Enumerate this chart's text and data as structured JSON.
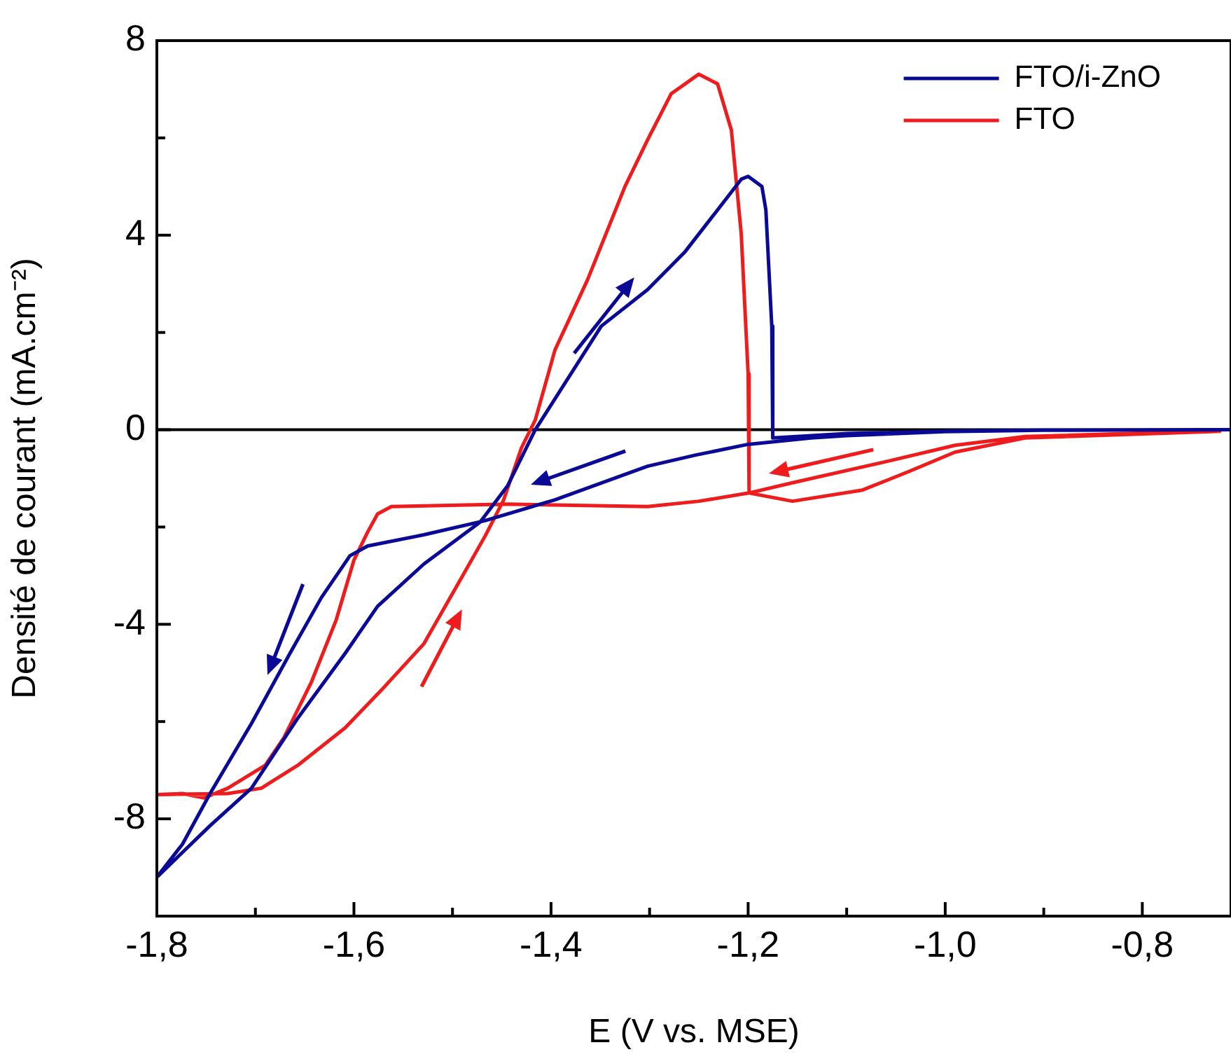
{
  "chart_data": {
    "type": "line",
    "xlabel": "E (V vs. MSE)",
    "ylabel": "Densité de courant (mA.cm⁻²)",
    "xlim": [
      -1.8,
      -0.71
    ],
    "ylim": [
      -10,
      8
    ],
    "xticks": [
      {
        "value": -1.8,
        "label": "-1,8"
      },
      {
        "value": -1.7,
        "label": null
      },
      {
        "value": -1.6,
        "label": "-1,6"
      },
      {
        "value": -1.5,
        "label": null
      },
      {
        "value": -1.4,
        "label": "-1,4"
      },
      {
        "value": -1.3,
        "label": null
      },
      {
        "value": -1.2,
        "label": "-1,2"
      },
      {
        "value": -1.1,
        "label": null
      },
      {
        "value": -1.0,
        "label": "-1,0"
      },
      {
        "value": -0.9,
        "label": null
      },
      {
        "value": -0.8,
        "label": "-0,8"
      }
    ],
    "yticks": [
      {
        "value": -10,
        "label": null
      },
      -8,
      {
        "value": -6,
        "label": null
      },
      -4,
      {
        "value": -2,
        "label": null
      },
      0,
      {
        "value": 2,
        "label": null
      },
      4,
      {
        "value": 6,
        "label": null
      },
      8
    ],
    "ref_lines": [
      {
        "axis": "y",
        "value": 0,
        "color": "#000000"
      }
    ],
    "legend": "top right",
    "grid": false,
    "marker": "none",
    "series": [
      {
        "name": "FTO/i-ZnO",
        "color": "#0a0a96",
        "x": [
          -0.72,
          -0.9,
          -1.0,
          -1.1,
          -1.136,
          -1.2,
          -1.253,
          -1.302,
          -1.396,
          -1.467,
          -1.529,
          -1.586,
          -1.604,
          -1.633,
          -1.665,
          -1.704,
          -1.746,
          -1.774,
          -1.8,
          -1.746,
          -1.704,
          -1.657,
          -1.609,
          -1.576,
          -1.529,
          -1.472,
          -1.444,
          -1.416,
          -1.349,
          -1.302,
          -1.264,
          -1.231,
          -1.207,
          -1.2,
          -1.186,
          -1.182,
          -1.176,
          -1.175,
          -1.1,
          -1.0,
          -0.9,
          -0.71
        ],
        "values": [
          0,
          -0.01,
          -0.04,
          -0.12,
          -0.17,
          -0.3,
          -0.52,
          -0.75,
          -1.44,
          -1.87,
          -2.16,
          -2.39,
          -2.59,
          -3.45,
          -4.6,
          -6.04,
          -7.48,
          -8.52,
          -9.2,
          -8.14,
          -7.37,
          -5.93,
          -4.6,
          -3.63,
          -2.76,
          -1.9,
          -1.15,
          0,
          2.13,
          2.88,
          3.66,
          4.52,
          5.15,
          5.21,
          5.0,
          4.52,
          2.13,
          -0.17,
          -0.08,
          -0.03,
          -0.01,
          0
        ]
      },
      {
        "name": "FTO",
        "color": "#ee1c1c",
        "x": [
          -0.72,
          -0.919,
          -0.99,
          -1.037,
          -1.084,
          -1.155,
          -1.199,
          -1.25,
          -1.302,
          -1.444,
          -1.562,
          -1.576,
          -1.586,
          -1.6,
          -1.618,
          -1.643,
          -1.671,
          -1.69,
          -1.728,
          -1.752,
          -1.774,
          -1.8,
          -1.728,
          -1.694,
          -1.657,
          -1.609,
          -1.572,
          -1.529,
          -1.491,
          -1.467,
          -1.448,
          -1.43,
          -1.416,
          -1.396,
          -1.363,
          -1.325,
          -1.302,
          -1.278,
          -1.25,
          -1.231,
          -1.217,
          -1.207,
          -1.2,
          -1.199,
          -1.155,
          -1.061,
          -0.99,
          -0.919,
          -0.72
        ],
        "values": [
          -0.03,
          -0.17,
          -0.46,
          -0.86,
          -1.24,
          -1.47,
          -1.3,
          -1.47,
          -1.58,
          -1.53,
          -1.58,
          -1.73,
          -2.1,
          -2.68,
          -3.91,
          -5.18,
          -6.33,
          -6.9,
          -7.37,
          -7.57,
          -7.48,
          -7.5,
          -7.48,
          -7.37,
          -6.9,
          -6.13,
          -5.35,
          -4.4,
          -3.05,
          -2.19,
          -1.44,
          -0.37,
          0.2,
          1.64,
          3.08,
          5.0,
          5.96,
          6.91,
          7.31,
          7.11,
          6.16,
          4.03,
          1.15,
          -1.3,
          -1.09,
          -0.66,
          -0.32,
          -0.14,
          -0.02
        ]
      }
    ]
  }
}
